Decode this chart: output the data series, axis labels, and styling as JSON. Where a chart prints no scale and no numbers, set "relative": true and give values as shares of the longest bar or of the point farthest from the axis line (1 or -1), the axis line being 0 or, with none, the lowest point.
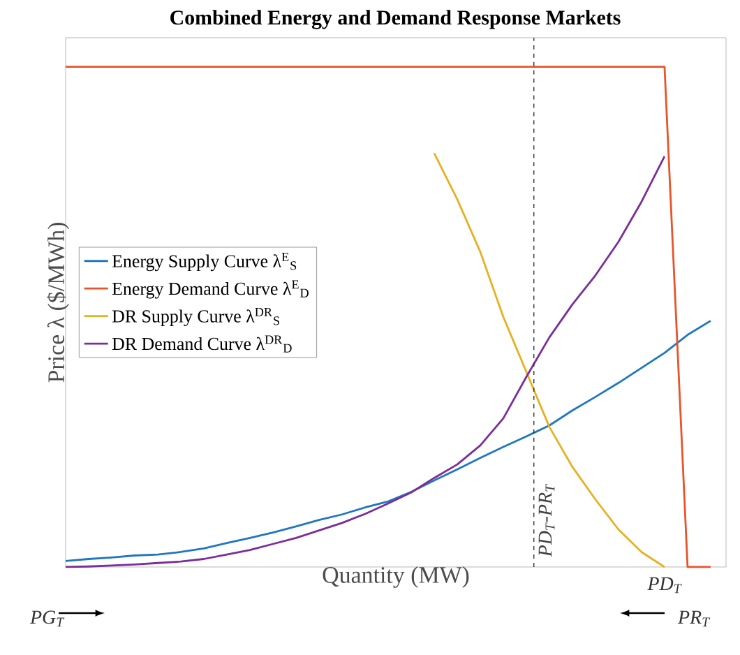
{
  "chart_data": {
    "type": "line",
    "title": "Combined Energy and Demand Response Markets",
    "xlabel": "Quantity (MW)",
    "ylabel": "Price λ ($/MWh)",
    "relative": true,
    "legend": "left",
    "marker": "none",
    "line_style": "solid",
    "categories": [
      null,
      null,
      null,
      null,
      null,
      null,
      null,
      null,
      null,
      null,
      null,
      null,
      null,
      null,
      null,
      null,
      null,
      null,
      null,
      null,
      null,
      null,
      null,
      null,
      null,
      null,
      null,
      null,
      null
    ],
    "series": [
      {
        "name": "Energy Supply Curve λ$^{E}$$_{S}$",
        "color": "#1f77c0",
        "values": [
          0.012,
          0.016,
          0.019,
          0.023,
          0.025,
          0.03,
          0.037,
          0.048,
          0.058,
          0.069,
          0.081,
          0.094,
          0.105,
          0.119,
          0.131,
          0.15,
          0.173,
          0.195,
          0.218,
          0.24,
          0.261,
          0.283,
          0.313,
          0.34,
          0.368,
          0.398,
          0.428,
          0.464,
          0.492
        ]
      },
      {
        "name": "Energy Demand Curve λ$^{E}$$_{D}$",
        "color": "#e8542a",
        "values": [
          1,
          1,
          1,
          1,
          1,
          1,
          1,
          1,
          1,
          1,
          1,
          1,
          1,
          1,
          1,
          1,
          1,
          1,
          1,
          1,
          1,
          1,
          1,
          1,
          1,
          1,
          1,
          0,
          0
        ]
      },
      {
        "name": "DR Supply Curve λ$^{DR}$$_{S}$",
        "color": "#e8b020",
        "values": [
          null,
          null,
          null,
          null,
          null,
          null,
          null,
          null,
          null,
          null,
          null,
          null,
          null,
          null,
          null,
          null,
          0.827,
          0.735,
          0.63,
          0.5,
          0.39,
          0.28,
          0.2,
          0.135,
          0.075,
          0.03,
          0,
          null,
          null
        ]
      },
      {
        "name": "DR Demand Curve λ$^{DR}$$_{D}$",
        "color": "#7b2d9a",
        "values": [
          0,
          0.001,
          0.003,
          0.005,
          0.008,
          0.011,
          0.016,
          0.025,
          0.034,
          0.046,
          0.058,
          0.073,
          0.088,
          0.106,
          0.127,
          0.149,
          0.178,
          0.205,
          0.243,
          0.297,
          0.38,
          0.459,
          0.525,
          0.583,
          0.65,
          0.73,
          0.821,
          null,
          null
        ]
      }
    ],
    "annotations": [
      "PD$_{T}$",
      "PG$_{T}$",
      "PR$_{T}$",
      "PD$_{T}$-PR$_{T}$"
    ]
  }
}
